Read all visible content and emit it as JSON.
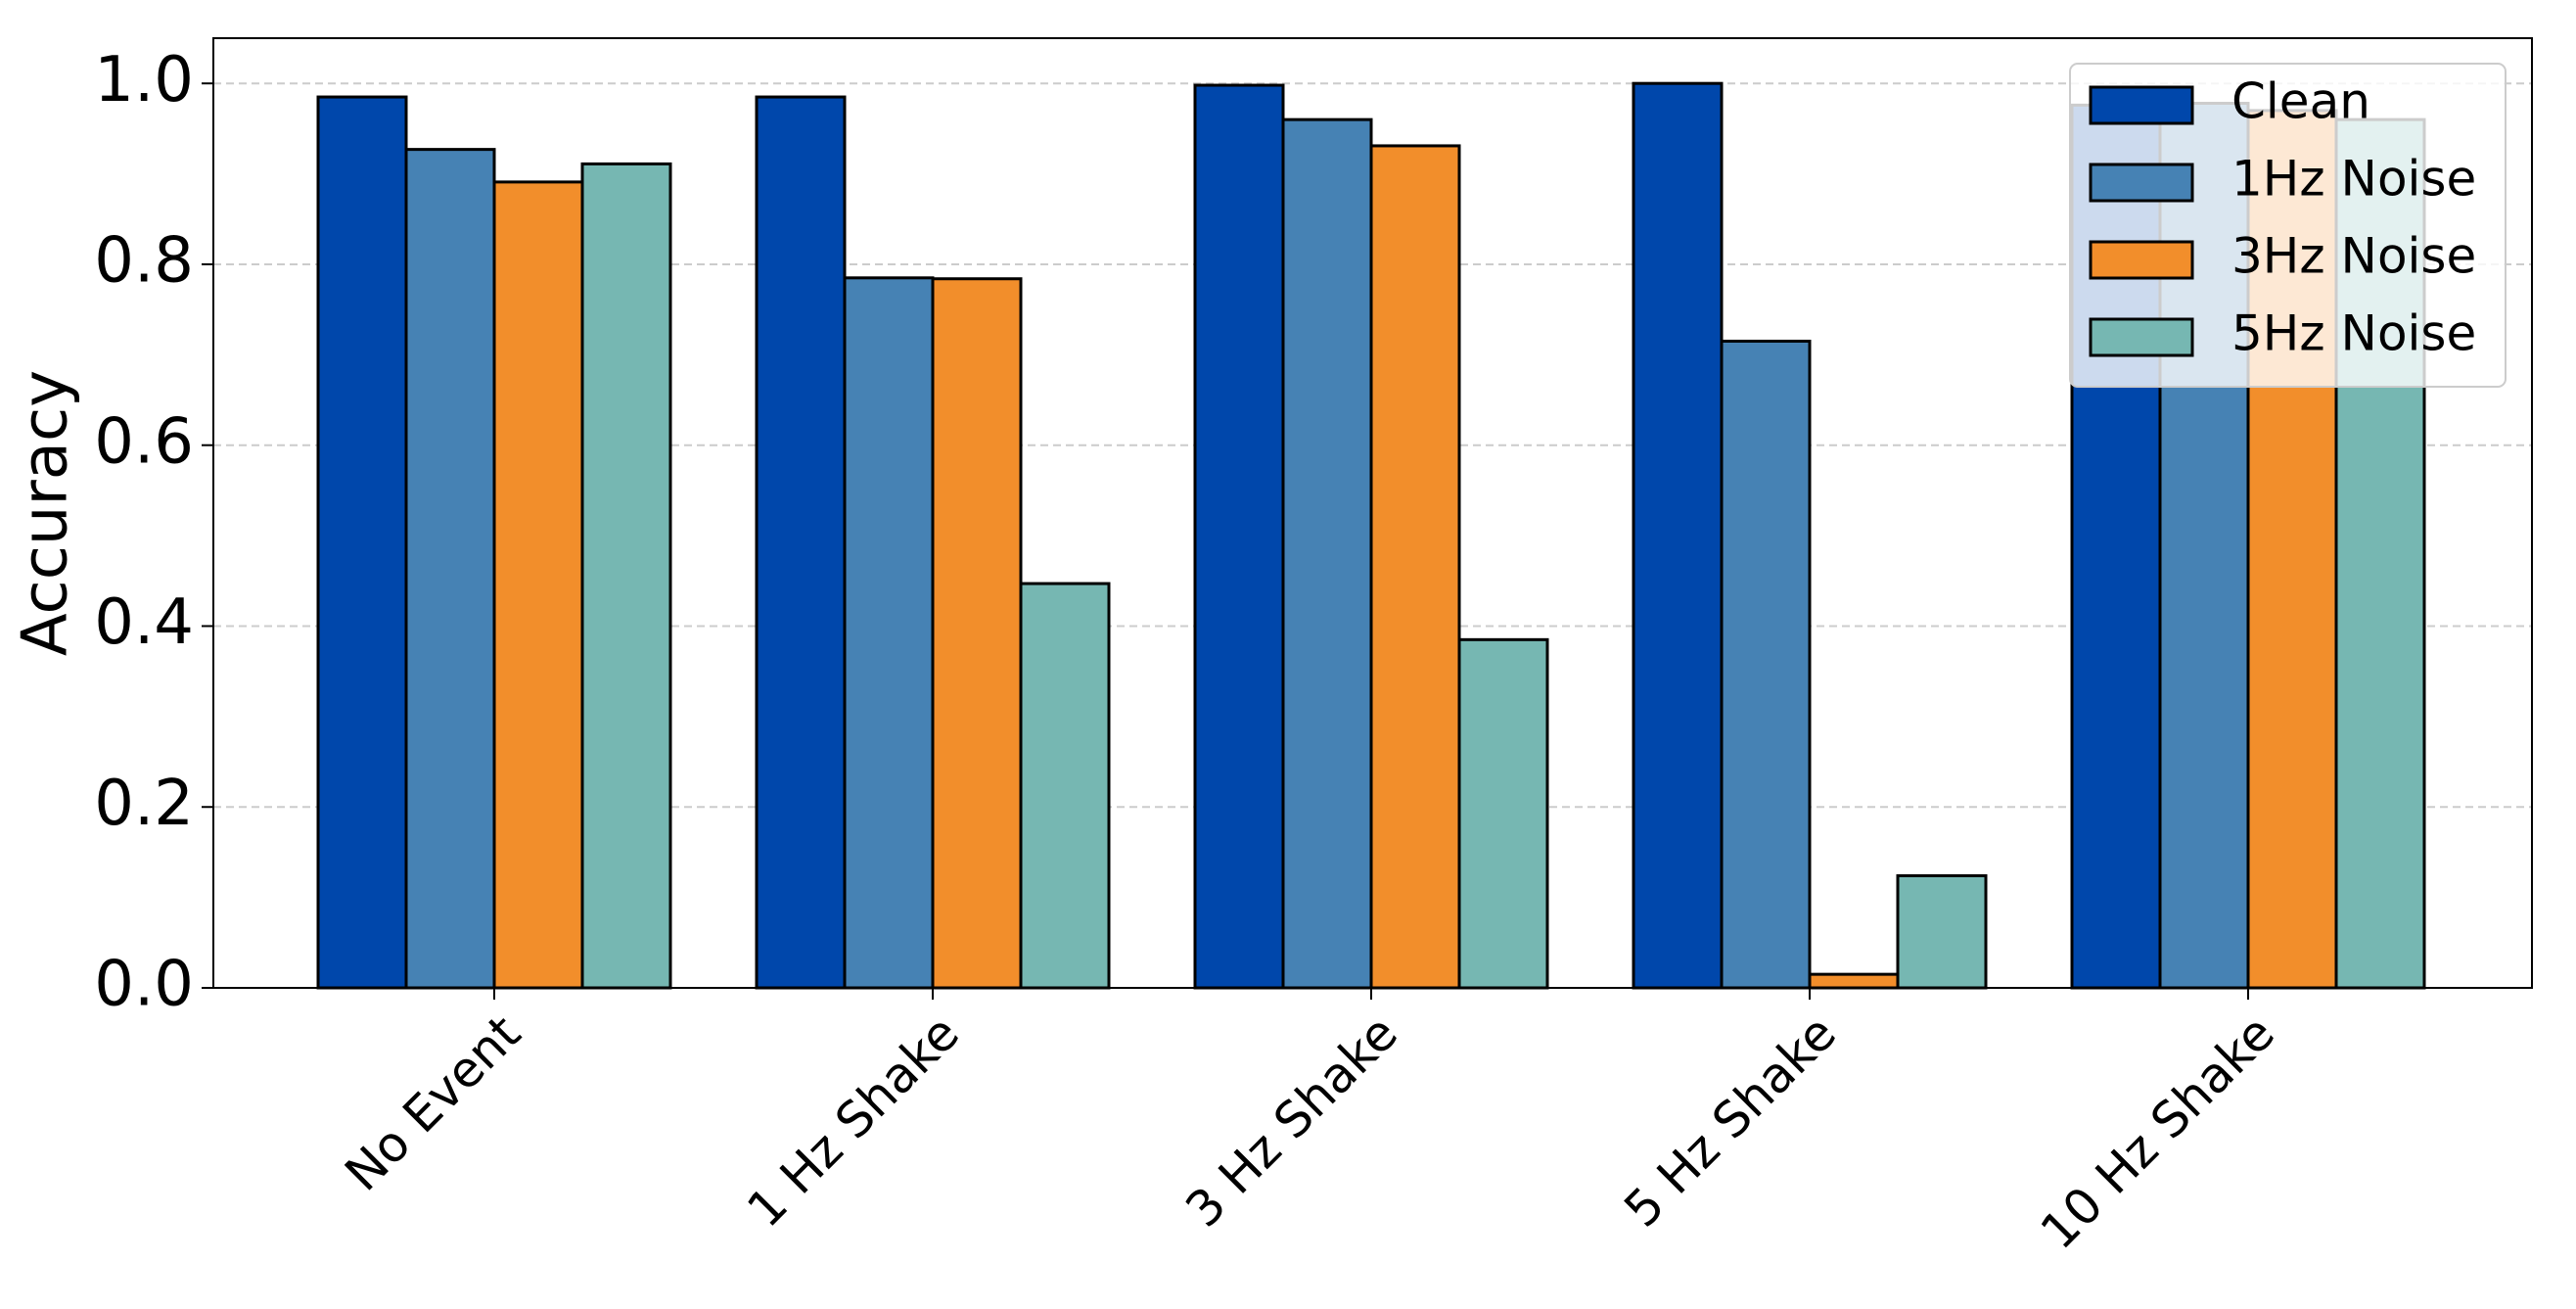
{
  "chart_data": {
    "type": "bar",
    "y_label": "Accuracy",
    "categories": [
      "No Event",
      "1 Hz Shake",
      "3 Hz Shake",
      "5 Hz Shake",
      "10 Hz Shake"
    ],
    "series": [
      {
        "name": "Clean",
        "color": "#0047ab",
        "values": [
          0.985,
          0.985,
          0.998,
          1.0,
          0.976
        ]
      },
      {
        "name": "1Hz Noise",
        "color": "#4682b4",
        "values": [
          0.927,
          0.785,
          0.96,
          0.715,
          0.978
        ]
      },
      {
        "name": "3Hz Noise",
        "color": "#f28e2b",
        "values": [
          0.891,
          0.784,
          0.931,
          0.015,
          0.97
        ]
      },
      {
        "name": "5Hz Noise",
        "color": "#76b7b2",
        "values": [
          0.911,
          0.447,
          0.385,
          0.124,
          0.96
        ]
      }
    ],
    "ylim": [
      0,
      1.05
    ],
    "yticks": [
      {
        "value": 0,
        "label": "0.0"
      },
      0.2,
      0.4,
      0.6,
      0.8,
      {
        "value": 1,
        "label": "1.0"
      }
    ],
    "grid": true,
    "legend": "upper right"
  }
}
